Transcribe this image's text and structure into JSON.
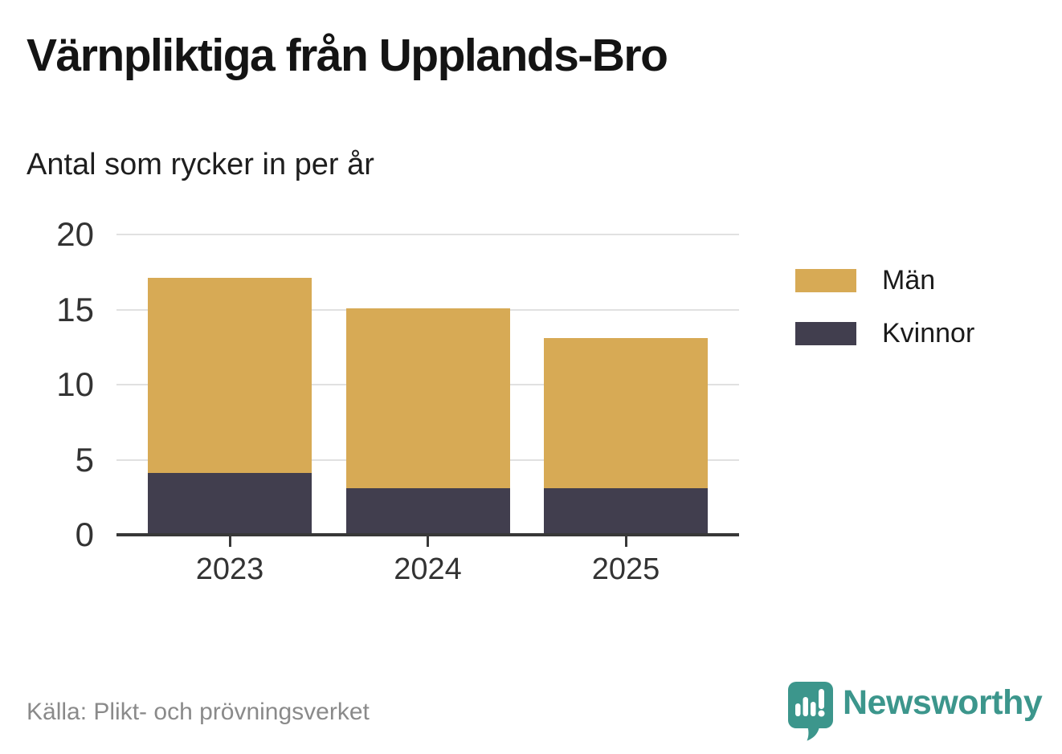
{
  "header": {
    "title": "Värnpliktiga från Upplands-Bro",
    "subtitle": "Antal som rycker in per år"
  },
  "chart_data": {
    "type": "bar",
    "stacked": true,
    "title": "Värnpliktiga från Upplands-Bro",
    "subtitle": "Antal som rycker in per år",
    "categories": [
      "2023",
      "2024",
      "2025"
    ],
    "series": [
      {
        "name": "Män",
        "color": "#d7aa55",
        "values": [
          13,
          12,
          10
        ]
      },
      {
        "name": "Kvinnor",
        "color": "#413e4e",
        "values": [
          4,
          3,
          3
        ]
      }
    ],
    "stack_totals": [
      17,
      15,
      13
    ],
    "xlabel": "",
    "ylabel": "",
    "ylim": [
      0,
      20
    ],
    "yticks": [
      0,
      5,
      10,
      15,
      20
    ],
    "grid": true,
    "legend_position": "right"
  },
  "footer": {
    "source": "Källa: Plikt- och prövningsverket",
    "brand": "Newsworthy",
    "brand_color": "#3c968c",
    "brand_icon": "speech-bubble-bar-chart-exclamation-icon"
  },
  "colors": {
    "bar_men": "#d7aa55",
    "bar_women": "#413e4e",
    "gridline": "#e1e1e1",
    "axis": "#383838",
    "tick_text": "#333333",
    "source_text": "#8a8a8a",
    "brand_teal": "#3c968c",
    "background": "#ffffff"
  }
}
